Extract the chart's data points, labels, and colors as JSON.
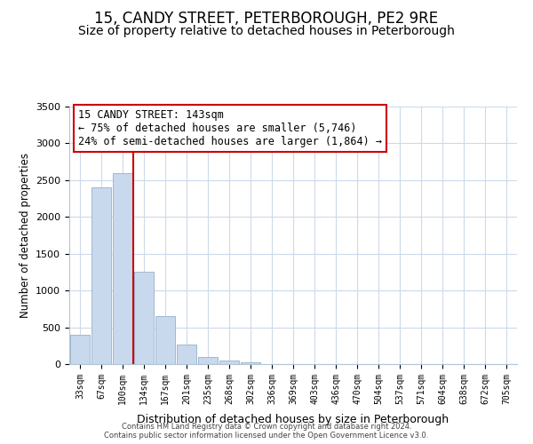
{
  "title": "15, CANDY STREET, PETERBOROUGH, PE2 9RE",
  "subtitle": "Size of property relative to detached houses in Peterborough",
  "xlabel": "Distribution of detached houses by size in Peterborough",
  "ylabel": "Number of detached properties",
  "bar_labels": [
    "33sqm",
    "67sqm",
    "100sqm",
    "134sqm",
    "167sqm",
    "201sqm",
    "235sqm",
    "268sqm",
    "302sqm",
    "336sqm",
    "369sqm",
    "403sqm",
    "436sqm",
    "470sqm",
    "504sqm",
    "537sqm",
    "571sqm",
    "604sqm",
    "638sqm",
    "672sqm",
    "705sqm"
  ],
  "bar_values": [
    400,
    2400,
    2600,
    1250,
    650,
    260,
    100,
    50,
    30,
    0,
    0,
    0,
    0,
    0,
    0,
    0,
    0,
    0,
    0,
    0,
    0
  ],
  "bar_color": "#c8d9ed",
  "bar_edge_color": "#a0b8d0",
  "vline_color": "#cc0000",
  "vline_x_index": 3,
  "ylim": [
    0,
    3500
  ],
  "annotation_line1": "15 CANDY STREET: 143sqm",
  "annotation_line2": "← 75% of detached houses are smaller (5,746)",
  "annotation_line3": "24% of semi-detached houses are larger (1,864) →",
  "annotation_box_color": "#ffffff",
  "annotation_box_edge": "#cc0000",
  "footer1": "Contains HM Land Registry data © Crown copyright and database right 2024.",
  "footer2": "Contains public sector information licensed under the Open Government Licence v3.0.",
  "background_color": "#ffffff",
  "grid_color": "#ccdaeb",
  "title_fontsize": 12,
  "subtitle_fontsize": 10,
  "ylabel_text": "Number of detached properties"
}
